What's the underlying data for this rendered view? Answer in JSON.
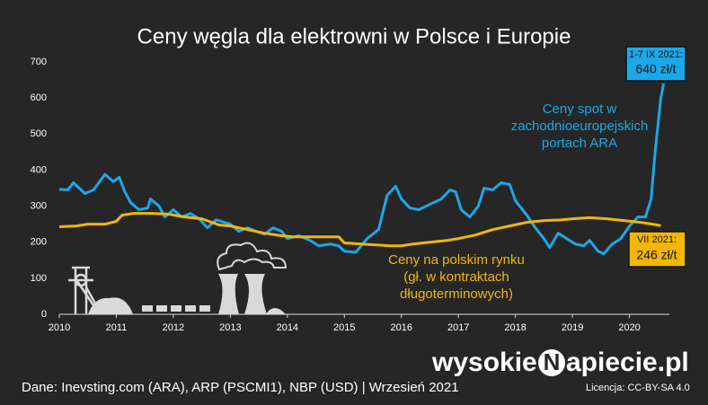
{
  "chart_data": {
    "type": "line",
    "title": "Ceny węgla dla elektrowni w Polsce i Europie",
    "xlim": [
      2010,
      2020.7
    ],
    "xticks": [
      2010,
      2011,
      2012,
      2013,
      2014,
      2015,
      2016,
      2017,
      2018,
      2019,
      2020
    ],
    "ylim": [
      0,
      700
    ],
    "yticks": [
      0,
      100,
      200,
      300,
      400,
      500,
      600,
      700
    ],
    "grid": false,
    "series": [
      {
        "name": [
          "Ceny spot w",
          "zachodnioeuropejskich",
          "portach ARA"
        ],
        "color": "#1ba8e8",
        "x": [
          2010.0,
          2010.15,
          2010.25,
          2010.45,
          2010.6,
          2010.8,
          2010.95,
          2011.05,
          2011.15,
          2011.25,
          2011.4,
          2011.55,
          2011.6,
          2011.75,
          2011.85,
          2012.0,
          2012.15,
          2012.3,
          2012.45,
          2012.6,
          2012.75,
          2012.9,
          2013.0,
          2013.15,
          2013.3,
          2013.45,
          2013.6,
          2013.75,
          2013.9,
          2014.0,
          2014.2,
          2014.4,
          2014.55,
          2014.75,
          2014.9,
          2015.0,
          2015.2,
          2015.4,
          2015.6,
          2015.75,
          2015.9,
          2016.0,
          2016.15,
          2016.3,
          2016.5,
          2016.7,
          2016.85,
          2016.95,
          2017.05,
          2017.2,
          2017.35,
          2017.45,
          2017.6,
          2017.75,
          2017.9,
          2018.0,
          2018.2,
          2018.35,
          2018.5,
          2018.6,
          2018.75,
          2018.9,
          2019.05,
          2019.2,
          2019.3,
          2019.45,
          2019.55,
          2019.7,
          2019.85,
          2020.0,
          2020.15,
          2020.28,
          2020.38,
          2020.45,
          2020.55,
          2020.6
        ],
        "values": [
          347,
          345,
          365,
          335,
          345,
          388,
          368,
          380,
          340,
          310,
          290,
          295,
          320,
          300,
          270,
          290,
          270,
          280,
          265,
          240,
          262,
          255,
          250,
          230,
          240,
          230,
          222,
          240,
          230,
          210,
          218,
          205,
          190,
          195,
          190,
          175,
          172,
          210,
          235,
          330,
          355,
          320,
          295,
          290,
          305,
          320,
          345,
          340,
          290,
          270,
          300,
          350,
          345,
          365,
          360,
          315,
          275,
          240,
          210,
          185,
          225,
          210,
          195,
          190,
          205,
          175,
          168,
          195,
          210,
          245,
          270,
          270,
          320,
          450,
          600,
          640
        ]
      },
      {
        "name": [
          "Ceny na polskim rynku",
          "(gł. w kontraktach",
          "długoterminowych)"
        ],
        "color": "#f2b705",
        "x": [
          2010.0,
          2010.3,
          2010.5,
          2010.8,
          2011.0,
          2011.1,
          2011.3,
          2011.6,
          2011.9,
          2012.2,
          2012.5,
          2012.8,
          2013.0,
          2013.3,
          2013.6,
          2013.9,
          2014.1,
          2014.4,
          2014.7,
          2014.9,
          2015.0,
          2015.3,
          2015.6,
          2015.8,
          2016.0,
          2016.2,
          2016.5,
          2016.8,
          2017.0,
          2017.3,
          2017.6,
          2017.9,
          2018.2,
          2018.5,
          2018.8,
          2019.0,
          2019.3,
          2019.6,
          2019.9,
          2020.2,
          2020.4,
          2020.55
        ],
        "values": [
          243,
          245,
          250,
          250,
          258,
          275,
          280,
          280,
          278,
          270,
          265,
          248,
          245,
          235,
          225,
          218,
          215,
          215,
          215,
          215,
          198,
          195,
          192,
          190,
          190,
          195,
          200,
          205,
          210,
          220,
          235,
          245,
          255,
          260,
          262,
          265,
          268,
          265,
          260,
          255,
          250,
          246
        ]
      }
    ],
    "annotations": [
      {
        "lines": [
          "1-7 IX 2021:",
          "640 zł/t"
        ]
      },
      {
        "lines": [
          "VII 2021:",
          "246 zł/t"
        ]
      }
    ],
    "source": "Dane: Inevsting.com (ARA), ARP (PSCMI1), NBP (USD) |  Wrzesień 2021",
    "license": "Licencja: CC-BY-SA 4.0",
    "logo": [
      "wysokie",
      "N",
      "apiecie.pl"
    ]
  }
}
